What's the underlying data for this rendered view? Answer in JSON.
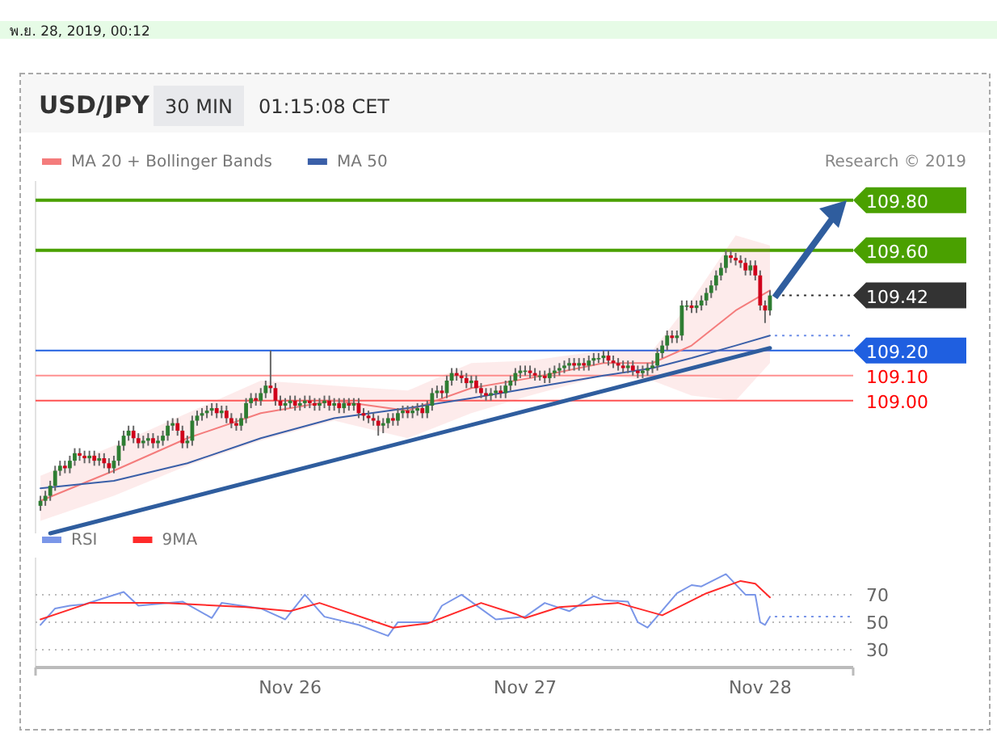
{
  "chart_data": [
    {
      "type": "candlestick",
      "title": "USD/JPY",
      "annotations": [
        "พ.ย. 28, 2019, 00:12",
        "30 MIN",
        "01:15:08 CET",
        "Research © 2019"
      ],
      "xlim": [
        "2019-11-24T22:00",
        "2019-11-28T09:30"
      ],
      "ylim": [
        108.47,
        109.877
      ],
      "tick_labels": false,
      "legend": "top left",
      "grid": false,
      "x": [
        "2019-11-24T22:30",
        "2019-11-24T23:00",
        "2019-11-24T23:30",
        "2019-11-25T00:00",
        "2019-11-25T00:30",
        "2019-11-25T01:00",
        "2019-11-25T01:30",
        "2019-11-25T02:00",
        "2019-11-25T02:30",
        "2019-11-25T03:00",
        "2019-11-25T03:30",
        "2019-11-25T04:00",
        "2019-11-25T04:30",
        "2019-11-25T05:00",
        "2019-11-25T05:30",
        "2019-11-25T06:00",
        "2019-11-25T06:30",
        "2019-11-25T07:00",
        "2019-11-25T07:30",
        "2019-11-25T08:00",
        "2019-11-25T08:30",
        "2019-11-25T09:00",
        "2019-11-25T09:30",
        "2019-11-25T10:00",
        "2019-11-25T10:30",
        "2019-11-25T11:00",
        "2019-11-25T11:30",
        "2019-11-25T12:00",
        "2019-11-25T12:30",
        "2019-11-25T13:00",
        "2019-11-25T13:30",
        "2019-11-25T14:00",
        "2019-11-25T14:30",
        "2019-11-25T15:00",
        "2019-11-25T15:30",
        "2019-11-25T16:00",
        "2019-11-25T16:30",
        "2019-11-25T17:00",
        "2019-11-25T17:30",
        "2019-11-25T18:00",
        "2019-11-25T18:30",
        "2019-11-25T19:00",
        "2019-11-25T19:30",
        "2019-11-25T20:00",
        "2019-11-25T20:30",
        "2019-11-25T21:00",
        "2019-11-25T21:30",
        "2019-11-25T22:00",
        "2019-11-25T22:30",
        "2019-11-25T23:00",
        "2019-11-25T23:30",
        "2019-11-26T00:00",
        "2019-11-26T00:30",
        "2019-11-26T01:00",
        "2019-11-26T01:30",
        "2019-11-26T02:00",
        "2019-11-26T02:30",
        "2019-11-26T03:00",
        "2019-11-26T03:30",
        "2019-11-26T04:00",
        "2019-11-26T04:30",
        "2019-11-26T05:00",
        "2019-11-26T05:30",
        "2019-11-26T06:00",
        "2019-11-26T06:30",
        "2019-11-26T07:00",
        "2019-11-26T07:30",
        "2019-11-26T08:00",
        "2019-11-26T08:30",
        "2019-11-26T09:00",
        "2019-11-26T09:30",
        "2019-11-26T10:00",
        "2019-11-26T10:30",
        "2019-11-26T11:00",
        "2019-11-26T11:30",
        "2019-11-26T12:00",
        "2019-11-26T12:30",
        "2019-11-26T13:00",
        "2019-11-26T13:30",
        "2019-11-26T14:00",
        "2019-11-26T14:30",
        "2019-11-26T15:00",
        "2019-11-26T15:30",
        "2019-11-26T16:00",
        "2019-11-26T16:30",
        "2019-11-26T17:00",
        "2019-11-26T17:30",
        "2019-11-26T18:00",
        "2019-11-26T18:30",
        "2019-11-26T19:00",
        "2019-11-26T19:30",
        "2019-11-26T20:00",
        "2019-11-26T20:30",
        "2019-11-26T21:00",
        "2019-11-26T21:30",
        "2019-11-26T22:00",
        "2019-11-26T22:30",
        "2019-11-26T23:00",
        "2019-11-26T23:30",
        "2019-11-27T00:00",
        "2019-11-27T00:30",
        "2019-11-27T01:00",
        "2019-11-27T01:30",
        "2019-11-27T02:00",
        "2019-11-27T02:30",
        "2019-11-27T03:00",
        "2019-11-27T03:30",
        "2019-11-27T04:00",
        "2019-11-27T04:30",
        "2019-11-27T05:00",
        "2019-11-27T05:30",
        "2019-11-27T06:00",
        "2019-11-27T06:30",
        "2019-11-27T07:00",
        "2019-11-27T07:30",
        "2019-11-27T08:00",
        "2019-11-27T08:30",
        "2019-11-27T09:00",
        "2019-11-27T09:30",
        "2019-11-27T10:00",
        "2019-11-27T10:30",
        "2019-11-27T11:00",
        "2019-11-27T11:30",
        "2019-11-27T12:00",
        "2019-11-27T12:30",
        "2019-11-27T13:00",
        "2019-11-27T13:30",
        "2019-11-27T14:00",
        "2019-11-27T14:30",
        "2019-11-27T15:00",
        "2019-11-27T15:30",
        "2019-11-27T16:00",
        "2019-11-27T16:30",
        "2019-11-27T17:00",
        "2019-11-27T17:30",
        "2019-11-27T18:00",
        "2019-11-27T18:30",
        "2019-11-27T19:00",
        "2019-11-27T19:30",
        "2019-11-27T20:00",
        "2019-11-27T20:30",
        "2019-11-27T21:00",
        "2019-11-27T21:30",
        "2019-11-27T22:00",
        "2019-11-27T22:30",
        "2019-11-27T23:00",
        "2019-11-27T23:30",
        "2019-11-28T00:00",
        "2019-11-28T00:30",
        "2019-11-28T01:00"
      ],
      "ohlc": [
        [
          108.58,
          108.62,
          108.56,
          108.6
        ],
        [
          108.6,
          108.64,
          108.58,
          108.62
        ],
        [
          108.62,
          108.68,
          108.6,
          108.66
        ],
        [
          108.66,
          108.74,
          108.64,
          108.72
        ],
        [
          108.72,
          108.76,
          108.7,
          108.74
        ],
        [
          108.74,
          108.76,
          108.71,
          108.73
        ],
        [
          108.73,
          108.78,
          108.71,
          108.76
        ],
        [
          108.76,
          108.81,
          108.74,
          108.79
        ],
        [
          108.79,
          108.81,
          108.76,
          108.78
        ],
        [
          108.78,
          108.8,
          108.75,
          108.77
        ],
        [
          108.77,
          108.8,
          108.75,
          108.78
        ],
        [
          108.78,
          108.8,
          108.74,
          108.76
        ],
        [
          108.76,
          108.79,
          108.74,
          108.77
        ],
        [
          108.77,
          108.79,
          108.73,
          108.75
        ],
        [
          108.75,
          108.77,
          108.71,
          108.73
        ],
        [
          108.73,
          108.78,
          108.71,
          108.76
        ],
        [
          108.76,
          108.84,
          108.74,
          108.82
        ],
        [
          108.82,
          108.88,
          108.8,
          108.86
        ],
        [
          108.86,
          108.9,
          108.84,
          108.88
        ],
        [
          108.88,
          108.9,
          108.83,
          108.85
        ],
        [
          108.85,
          108.87,
          108.81,
          108.83
        ],
        [
          108.83,
          108.86,
          108.81,
          108.84
        ],
        [
          108.84,
          108.87,
          108.82,
          108.85
        ],
        [
          108.85,
          108.87,
          108.81,
          108.83
        ],
        [
          108.83,
          108.86,
          108.81,
          108.84
        ],
        [
          108.84,
          108.88,
          108.82,
          108.86
        ],
        [
          108.86,
          108.92,
          108.84,
          108.9
        ],
        [
          108.9,
          108.93,
          108.88,
          108.91
        ],
        [
          108.91,
          108.93,
          108.86,
          108.88
        ],
        [
          108.88,
          108.9,
          108.81,
          108.83
        ],
        [
          108.83,
          108.86,
          108.81,
          108.84
        ],
        [
          108.84,
          108.94,
          108.82,
          108.92
        ],
        [
          108.92,
          108.96,
          108.9,
          108.94
        ],
        [
          108.94,
          108.97,
          108.92,
          108.95
        ],
        [
          108.95,
          108.98,
          108.93,
          108.96
        ],
        [
          108.96,
          108.99,
          108.94,
          108.97
        ],
        [
          108.97,
          108.99,
          108.93,
          108.95
        ],
        [
          108.95,
          108.98,
          108.93,
          108.96
        ],
        [
          108.96,
          108.98,
          108.91,
          108.93
        ],
        [
          108.93,
          108.95,
          108.89,
          108.91
        ],
        [
          108.91,
          108.93,
          108.88,
          108.9
        ],
        [
          108.9,
          108.95,
          108.88,
          108.93
        ],
        [
          108.93,
          109.01,
          108.91,
          108.99
        ],
        [
          108.99,
          109.03,
          108.97,
          109.01
        ],
        [
          109.01,
          109.03,
          108.98,
          109.0
        ],
        [
          109.0,
          109.05,
          108.98,
          109.03
        ],
        [
          109.03,
          109.08,
          109.01,
          109.06
        ],
        [
          109.06,
          109.2,
          109.03,
          109.05
        ],
        [
          109.05,
          109.07,
          108.98,
          109.0
        ],
        [
          109.0,
          109.02,
          108.96,
          108.98
        ],
        [
          108.98,
          109.01,
          108.96,
          108.99
        ],
        [
          108.99,
          109.02,
          108.97,
          109.0
        ],
        [
          109.0,
          109.02,
          108.96,
          108.98
        ],
        [
          108.98,
          109.01,
          108.96,
          108.99
        ],
        [
          108.99,
          109.02,
          108.97,
          109.0
        ],
        [
          109.0,
          109.02,
          108.97,
          108.99
        ],
        [
          108.99,
          109.01,
          108.96,
          108.98
        ],
        [
          108.98,
          109.01,
          108.96,
          108.99
        ],
        [
          108.99,
          109.02,
          108.97,
          109.0
        ],
        [
          109.0,
          109.02,
          108.96,
          108.98
        ],
        [
          108.98,
          109.01,
          108.96,
          108.99
        ],
        [
          108.99,
          109.01,
          108.95,
          108.97
        ],
        [
          108.97,
          109.01,
          108.95,
          108.99
        ],
        [
          108.99,
          109.01,
          108.96,
          108.98
        ],
        [
          108.98,
          109.01,
          108.96,
          108.99
        ],
        [
          108.99,
          109.01,
          108.93,
          108.95
        ],
        [
          108.95,
          108.97,
          108.92,
          108.94
        ],
        [
          108.94,
          108.96,
          108.91,
          108.93
        ],
        [
          108.93,
          108.95,
          108.9,
          108.92
        ],
        [
          108.92,
          108.94,
          108.86,
          108.9
        ],
        [
          108.9,
          108.93,
          108.87,
          108.91
        ],
        [
          108.91,
          108.95,
          108.89,
          108.93
        ],
        [
          108.93,
          108.95,
          108.9,
          108.92
        ],
        [
          108.92,
          108.97,
          108.9,
          108.95
        ],
        [
          108.95,
          108.98,
          108.93,
          108.96
        ],
        [
          108.96,
          108.98,
          108.93,
          108.95
        ],
        [
          108.95,
          108.98,
          108.93,
          108.96
        ],
        [
          108.96,
          108.99,
          108.94,
          108.97
        ],
        [
          108.97,
          108.99,
          108.93,
          108.95
        ],
        [
          108.95,
          109.0,
          108.93,
          108.98
        ],
        [
          108.98,
          109.05,
          108.96,
          109.03
        ],
        [
          109.03,
          109.06,
          109.01,
          109.04
        ],
        [
          109.04,
          109.06,
          109.01,
          109.03
        ],
        [
          109.03,
          109.1,
          109.01,
          109.08
        ],
        [
          109.08,
          109.13,
          109.06,
          109.11
        ],
        [
          109.11,
          109.13,
          109.08,
          109.1
        ],
        [
          109.1,
          109.12,
          109.07,
          109.09
        ],
        [
          109.09,
          109.11,
          109.05,
          109.07
        ],
        [
          109.07,
          109.1,
          109.05,
          109.08
        ],
        [
          109.08,
          109.1,
          109.03,
          109.05
        ],
        [
          109.05,
          109.07,
          109.01,
          109.03
        ],
        [
          109.03,
          109.05,
          109.0,
          109.02
        ],
        [
          109.02,
          109.05,
          109.0,
          109.03
        ],
        [
          109.03,
          109.06,
          109.01,
          109.04
        ],
        [
          109.04,
          109.06,
          109.01,
          109.03
        ],
        [
          109.03,
          109.08,
          109.01,
          109.06
        ],
        [
          109.06,
          109.1,
          109.04,
          109.08
        ],
        [
          109.08,
          109.13,
          109.06,
          109.11
        ],
        [
          109.11,
          109.14,
          109.09,
          109.12
        ],
        [
          109.12,
          109.14,
          109.1,
          109.12
        ],
        [
          109.12,
          109.14,
          109.09,
          109.11
        ],
        [
          109.11,
          109.13,
          109.08,
          109.1
        ],
        [
          109.1,
          109.12,
          109.08,
          109.1
        ],
        [
          109.1,
          109.12,
          109.07,
          109.09
        ],
        [
          109.09,
          109.13,
          109.07,
          109.11
        ],
        [
          109.11,
          109.14,
          109.09,
          109.12
        ],
        [
          109.12,
          109.15,
          109.1,
          109.13
        ],
        [
          109.13,
          109.16,
          109.11,
          109.14
        ],
        [
          109.14,
          109.17,
          109.12,
          109.15
        ],
        [
          109.15,
          109.17,
          109.12,
          109.14
        ],
        [
          109.14,
          109.17,
          109.12,
          109.15
        ],
        [
          109.15,
          109.17,
          109.12,
          109.14
        ],
        [
          109.14,
          109.18,
          109.12,
          109.16
        ],
        [
          109.16,
          109.19,
          109.14,
          109.17
        ],
        [
          109.17,
          109.19,
          109.15,
          109.17
        ],
        [
          109.17,
          109.2,
          109.15,
          109.18
        ],
        [
          109.18,
          109.2,
          109.14,
          109.16
        ],
        [
          109.16,
          109.18,
          109.13,
          109.15
        ],
        [
          109.15,
          109.17,
          109.12,
          109.14
        ],
        [
          109.14,
          109.16,
          109.11,
          109.13
        ],
        [
          109.13,
          109.16,
          109.11,
          109.14
        ],
        [
          109.14,
          109.16,
          109.1,
          109.12
        ],
        [
          109.12,
          109.14,
          109.09,
          109.11
        ],
        [
          109.11,
          109.14,
          109.09,
          109.12
        ],
        [
          109.12,
          109.15,
          109.1,
          109.13
        ],
        [
          109.13,
          109.16,
          109.11,
          109.14
        ],
        [
          109.14,
          109.21,
          109.12,
          109.19
        ],
        [
          109.19,
          109.24,
          109.17,
          109.22
        ],
        [
          109.22,
          109.28,
          109.2,
          109.26
        ],
        [
          109.26,
          109.28,
          109.23,
          109.25
        ],
        [
          109.25,
          109.28,
          109.23,
          109.26
        ],
        [
          109.26,
          109.4,
          109.24,
          109.38
        ],
        [
          109.38,
          109.4,
          109.36,
          109.38
        ],
        [
          109.38,
          109.4,
          109.35,
          109.37
        ],
        [
          109.37,
          109.4,
          109.35,
          109.38
        ],
        [
          109.38,
          109.42,
          109.36,
          109.4
        ],
        [
          109.4,
          109.45,
          109.38,
          109.43
        ],
        [
          109.43,
          109.48,
          109.41,
          109.46
        ],
        [
          109.46,
          109.52,
          109.44,
          109.5
        ],
        [
          109.5,
          109.55,
          109.48,
          109.53
        ],
        [
          109.53,
          109.6,
          109.51,
          109.58
        ],
        [
          109.58,
          109.6,
          109.55,
          109.57
        ],
        [
          109.57,
          109.59,
          109.54,
          109.56
        ],
        [
          109.56,
          109.58,
          109.53,
          109.55
        ],
        [
          109.55,
          109.57,
          109.5,
          109.52
        ],
        [
          109.52,
          109.56,
          109.5,
          109.54
        ],
        [
          109.54,
          109.56,
          109.48,
          109.5
        ],
        [
          109.5,
          109.52,
          109.36,
          109.38
        ],
        [
          109.38,
          109.4,
          109.31,
          109.36
        ],
        [
          109.36,
          109.44,
          109.34,
          109.42
        ]
      ],
      "series": [
        {
          "type": "line",
          "name": "MA 20 + Bollinger Bands",
          "color": "#f47c7c",
          "x": [
            "2019-11-24T22:30",
            "2019-11-25T06:00",
            "2019-11-25T13:30",
            "2019-11-25T21:00",
            "2019-11-26T04:30",
            "2019-11-26T12:00",
            "2019-11-26T18:30",
            "2019-11-27T00:30",
            "2019-11-27T08:00",
            "2019-11-27T13:00",
            "2019-11-27T17:00",
            "2019-11-27T21:30",
            "2019-11-28T01:00"
          ],
          "values": [
            108.6,
            108.72,
            108.85,
            108.95,
            109.0,
            108.96,
            109.05,
            109.09,
            109.15,
            109.15,
            109.22,
            109.36,
            109.44
          ],
          "lower": [
            108.52,
            108.62,
            108.74,
            108.84,
            108.92,
            108.85,
            108.95,
            109.02,
            109.1,
            109.08,
            109.02,
            109.0,
            109.15
          ],
          "upper": [
            108.7,
            108.82,
            108.95,
            109.08,
            109.06,
            109.04,
            109.15,
            109.16,
            109.2,
            109.2,
            109.4,
            109.66,
            109.62
          ]
        },
        {
          "type": "line",
          "name": "MA 50",
          "color": "#3a5fa8",
          "x": [
            "2019-11-24T22:30",
            "2019-11-25T06:00",
            "2019-11-25T13:30",
            "2019-11-25T21:00",
            "2019-11-26T04:30",
            "2019-11-26T12:00",
            "2019-11-26T18:30",
            "2019-11-27T00:30",
            "2019-11-27T08:00",
            "2019-11-27T13:00",
            "2019-11-27T17:00",
            "2019-11-27T21:30",
            "2019-11-28T01:00"
          ],
          "values": [
            108.65,
            108.68,
            108.75,
            108.85,
            108.93,
            108.97,
            109.01,
            109.05,
            109.1,
            109.13,
            109.17,
            109.22,
            109.26
          ]
        },
        {
          "type": "line",
          "color": "#2f5d9e",
          "x": [
            "2019-11-24T23:30",
            "2019-11-28T01:00"
          ],
          "values": [
            108.47,
            109.21
          ]
        }
      ],
      "ref_lines": [
        {
          "axis": "y",
          "value": 109.8,
          "label": "109.80",
          "color": "#4aa000",
          "line_style": "solid"
        },
        {
          "axis": "y",
          "value": 109.6,
          "label": "109.60",
          "color": "#4aa000",
          "line_style": "solid"
        },
        {
          "axis": "y",
          "value": 109.42,
          "label": "109.42",
          "color": "#333333",
          "line_style": "dotted"
        },
        {
          "axis": "y",
          "value": 109.26,
          "color": "#6f8fe8",
          "line_style": "dotted"
        },
        {
          "axis": "y",
          "value": 109.2,
          "label": "109.20",
          "color": "#1f5fe0",
          "line_style": "solid"
        },
        {
          "axis": "y",
          "value": 109.1,
          "label": "109.10",
          "color": "#ff9090",
          "line_style": "solid"
        },
        {
          "axis": "y",
          "value": 109.0,
          "label": "109.00",
          "color": "#ff5050",
          "line_style": "solid"
        }
      ]
    },
    {
      "type": "line",
      "xlim": [
        "2019-11-24T22:00",
        "2019-11-28T09:30"
      ],
      "ylim": [
        17,
        97
      ],
      "yticks": [
        30,
        50,
        70
      ],
      "xticks": [
        {
          "value": "2019-11-26",
          "label": "Nov 26"
        },
        {
          "value": "2019-11-27",
          "label": "Nov 27"
        },
        {
          "value": "2019-11-28",
          "label": "Nov 28"
        }
      ],
      "grid": "y",
      "legend": "top left",
      "series": [
        {
          "name": "RSI",
          "color": "#7a96e8",
          "x": [
            "2019-11-24T22:30",
            "2019-11-25T00:00",
            "2019-11-25T01:30",
            "2019-11-25T03:00",
            "2019-11-25T07:00",
            "2019-11-25T08:30",
            "2019-11-25T13:00",
            "2019-11-25T16:00",
            "2019-11-25T17:00",
            "2019-11-25T21:00",
            "2019-11-25T23:30",
            "2019-11-26T01:30",
            "2019-11-26T03:30",
            "2019-11-26T07:00",
            "2019-11-26T10:00",
            "2019-11-26T11:00",
            "2019-11-26T14:30",
            "2019-11-26T15:30",
            "2019-11-26T17:30",
            "2019-11-26T21:00",
            "2019-11-27T00:00",
            "2019-11-27T02:00",
            "2019-11-27T04:30",
            "2019-11-27T07:00",
            "2019-11-27T08:00",
            "2019-11-27T10:30",
            "2019-11-27T11:30",
            "2019-11-27T12:30",
            "2019-11-27T15:30",
            "2019-11-27T17:00",
            "2019-11-27T18:00",
            "2019-11-27T20:30",
            "2019-11-27T22:30",
            "2019-11-27T23:30",
            "2019-11-28T00:00",
            "2019-11-28T00:30",
            "2019-11-28T01:00"
          ],
          "values": [
            48,
            60,
            62,
            63,
            72,
            62,
            65,
            53,
            64,
            60,
            52,
            70,
            54,
            48,
            40,
            50,
            50,
            62,
            70,
            52,
            54,
            64,
            58,
            69,
            66,
            65,
            50,
            46,
            71,
            77,
            76,
            85,
            70,
            70,
            50,
            48,
            54
          ]
        },
        {
          "name": "9MA",
          "color": "#ff2a2a",
          "x": [
            "2019-11-24T22:30",
            "2019-11-25T03:30",
            "2019-11-25T11:00",
            "2019-11-25T19:30",
            "2019-11-26T00:00",
            "2019-11-26T03:00",
            "2019-11-26T10:30",
            "2019-11-26T14:00",
            "2019-11-26T19:30",
            "2019-11-26T23:00",
            "2019-11-27T00:00",
            "2019-11-27T03:30",
            "2019-11-27T09:30",
            "2019-11-27T14:00",
            "2019-11-27T18:30",
            "2019-11-27T22:00",
            "2019-11-27T23:30",
            "2019-11-28T01:00"
          ],
          "values": [
            52,
            64,
            64,
            61,
            58,
            64,
            46,
            49,
            64,
            56,
            53,
            61,
            64,
            55,
            71,
            80,
            78,
            68
          ]
        }
      ],
      "ref_lines": [
        {
          "axis": "y",
          "value": 54,
          "color": "#7a96e8",
          "line_style": "dotted"
        }
      ]
    }
  ]
}
